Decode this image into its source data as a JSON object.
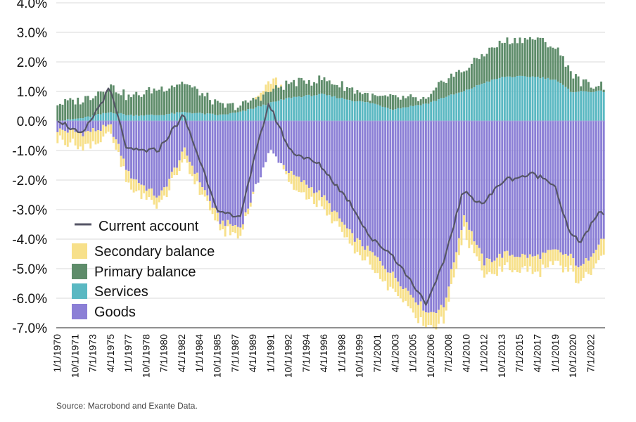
{
  "chart_data": {
    "type": "bar",
    "stacked": true,
    "ylim": [
      -7.0,
      4.0
    ],
    "yticks": [
      "4.0%",
      "3.0%",
      "2.0%",
      "1.0%",
      "0.0%",
      "-1.0%",
      "-2.0%",
      "-3.0%",
      "-4.0%",
      "-5.0%",
      "-6.0%",
      "-7.0%"
    ],
    "xticks": [
      "1/1/1970",
      "10/1/1971",
      "7/1/1973",
      "4/1/1975",
      "1/1/1977",
      "10/1/1978",
      "7/1/1980",
      "4/1/1982",
      "1/1/1984",
      "10/1/1985",
      "7/1/1987",
      "4/1/1989",
      "1/1/1991",
      "10/1/1992",
      "7/1/1994",
      "4/1/1996",
      "1/1/1998",
      "10/1/1999",
      "7/1/2001",
      "4/1/2003",
      "1/1/2005",
      "10/1/2006",
      "7/1/2008",
      "4/1/2010",
      "1/1/2012",
      "10/1/2013",
      "7/1/2015",
      "4/1/2017",
      "1/1/2019",
      "10/1/2020",
      "7/1/2022"
    ],
    "grid": true,
    "legend_position": "lower-left",
    "source": "Source: Macrobond and Exante Data.",
    "colors": {
      "Goods": "#8b7fd6",
      "Services": "#5ab8c2",
      "Primary balance": "#5e8c6a",
      "Secondary balance": "#f7e08a",
      "Current account": "#555566"
    },
    "legend": [
      "Current account",
      "Secondary balance",
      "Primary balance",
      "Services",
      "Goods"
    ],
    "anchors": {
      "x": [
        1970.0,
        1972.5,
        1975.25,
        1977.0,
        1980.0,
        1982.5,
        1986.0,
        1988.0,
        1990.9,
        1993.0,
        1996.0,
        1999.0,
        2001.0,
        2003.0,
        2006.5,
        2008.0,
        2010.0,
        2012.0,
        2014.0,
        2017.0,
        2019.0,
        2020.5,
        2021.5,
        2023.5
      ],
      "current_account": [
        0.1,
        -0.5,
        1.1,
        -1.0,
        -1.0,
        0.2,
        -3.1,
        -3.3,
        0.6,
        -1.0,
        -1.5,
        -2.8,
        -4.0,
        -4.5,
        -6.2,
        -4.9,
        -2.4,
        -2.8,
        -2.0,
        -1.8,
        -2.1,
        -3.8,
        -4.1,
        -3.1
      ],
      "goods": [
        -0.3,
        -0.4,
        -0.2,
        -1.8,
        -2.6,
        -1.0,
        -3.4,
        -3.6,
        -1.0,
        -1.8,
        -2.5,
        -3.9,
        -4.5,
        -5.2,
        -6.5,
        -6.3,
        -3.2,
        -4.8,
        -4.5,
        -4.6,
        -4.4,
        -4.6,
        -5.0,
        -4.0
      ],
      "services": [
        0.0,
        0.1,
        0.3,
        0.2,
        0.2,
        0.3,
        0.2,
        0.3,
        0.6,
        0.8,
        0.9,
        0.7,
        0.6,
        0.4,
        0.6,
        0.8,
        1.0,
        1.3,
        1.5,
        1.5,
        1.4,
        1.0,
        1.0,
        1.0
      ],
      "primary": [
        0.6,
        0.6,
        0.9,
        0.6,
        0.9,
        1.0,
        0.3,
        0.2,
        0.4,
        0.5,
        0.5,
        0.4,
        0.2,
        0.4,
        0.1,
        0.6,
        0.7,
        1.0,
        1.2,
        1.3,
        1.1,
        0.7,
        0.3,
        0.2
      ],
      "secondary": [
        -0.3,
        -0.5,
        -0.3,
        -0.4,
        -0.3,
        -0.3,
        -0.3,
        -0.3,
        0.4,
        -0.4,
        -0.4,
        -0.4,
        -0.5,
        -0.5,
        -0.5,
        -0.5,
        -0.5,
        -0.5,
        -0.5,
        -0.5,
        -0.5,
        -0.5,
        -0.5,
        -0.5
      ]
    }
  }
}
